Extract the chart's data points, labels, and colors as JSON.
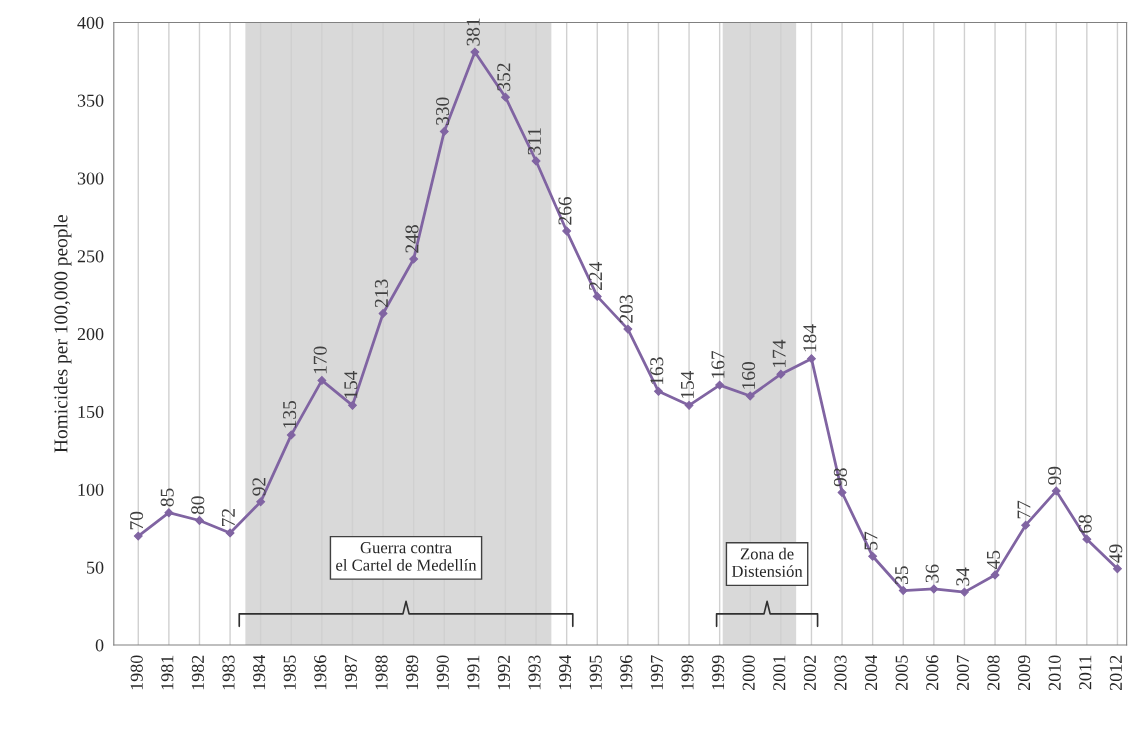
{
  "chart_data": {
    "type": "line",
    "ylabel": "Homicides per 100,000 people",
    "x": [
      1980,
      1981,
      1982,
      1983,
      1984,
      1985,
      1986,
      1987,
      1988,
      1989,
      1990,
      1991,
      1992,
      1993,
      1994,
      1995,
      1996,
      1997,
      1998,
      1999,
      2000,
      2001,
      2002,
      2003,
      2004,
      2005,
      2006,
      2007,
      2008,
      2009,
      2010,
      2011,
      2012
    ],
    "series": [
      {
        "color": "#8064a2",
        "values": [
          70,
          85,
          80,
          72,
          92,
          135,
          170,
          154,
          213,
          248,
          330,
          381,
          352,
          311,
          266,
          224,
          203,
          163,
          154,
          167,
          160,
          174,
          184,
          98,
          57,
          35,
          36,
          34,
          45,
          77,
          99,
          68,
          49
        ]
      }
    ],
    "xlim": [
      1979.2,
      2012.3
    ],
    "xticks": [
      1980,
      1981,
      1982,
      1983,
      1984,
      1985,
      1986,
      1987,
      1988,
      1989,
      1990,
      1991,
      1992,
      1993,
      1994,
      1995,
      1996,
      1997,
      1998,
      1999,
      2000,
      2001,
      2002,
      2003,
      2004,
      2005,
      2006,
      2007,
      2008,
      2009,
      2010,
      2011,
      2012
    ],
    "ylim": [
      0,
      400
    ],
    "yticks": [
      0,
      50,
      100,
      150,
      200,
      250,
      300,
      350,
      400
    ],
    "bands": [
      {
        "axis": "x",
        "from": 1983.5,
        "to": 1993.5,
        "color": "#d9d9d9",
        "label": "Guerra contra\nel Cartel de Medellín"
      },
      {
        "axis": "x",
        "from": 1999.1,
        "to": 2001.5,
        "color": "#d9d9d9",
        "label": "Zona de\nDistensión"
      }
    ],
    "data_labels": true,
    "grid": "x",
    "marker": "diamond",
    "line_style": "solid",
    "legend": false
  }
}
